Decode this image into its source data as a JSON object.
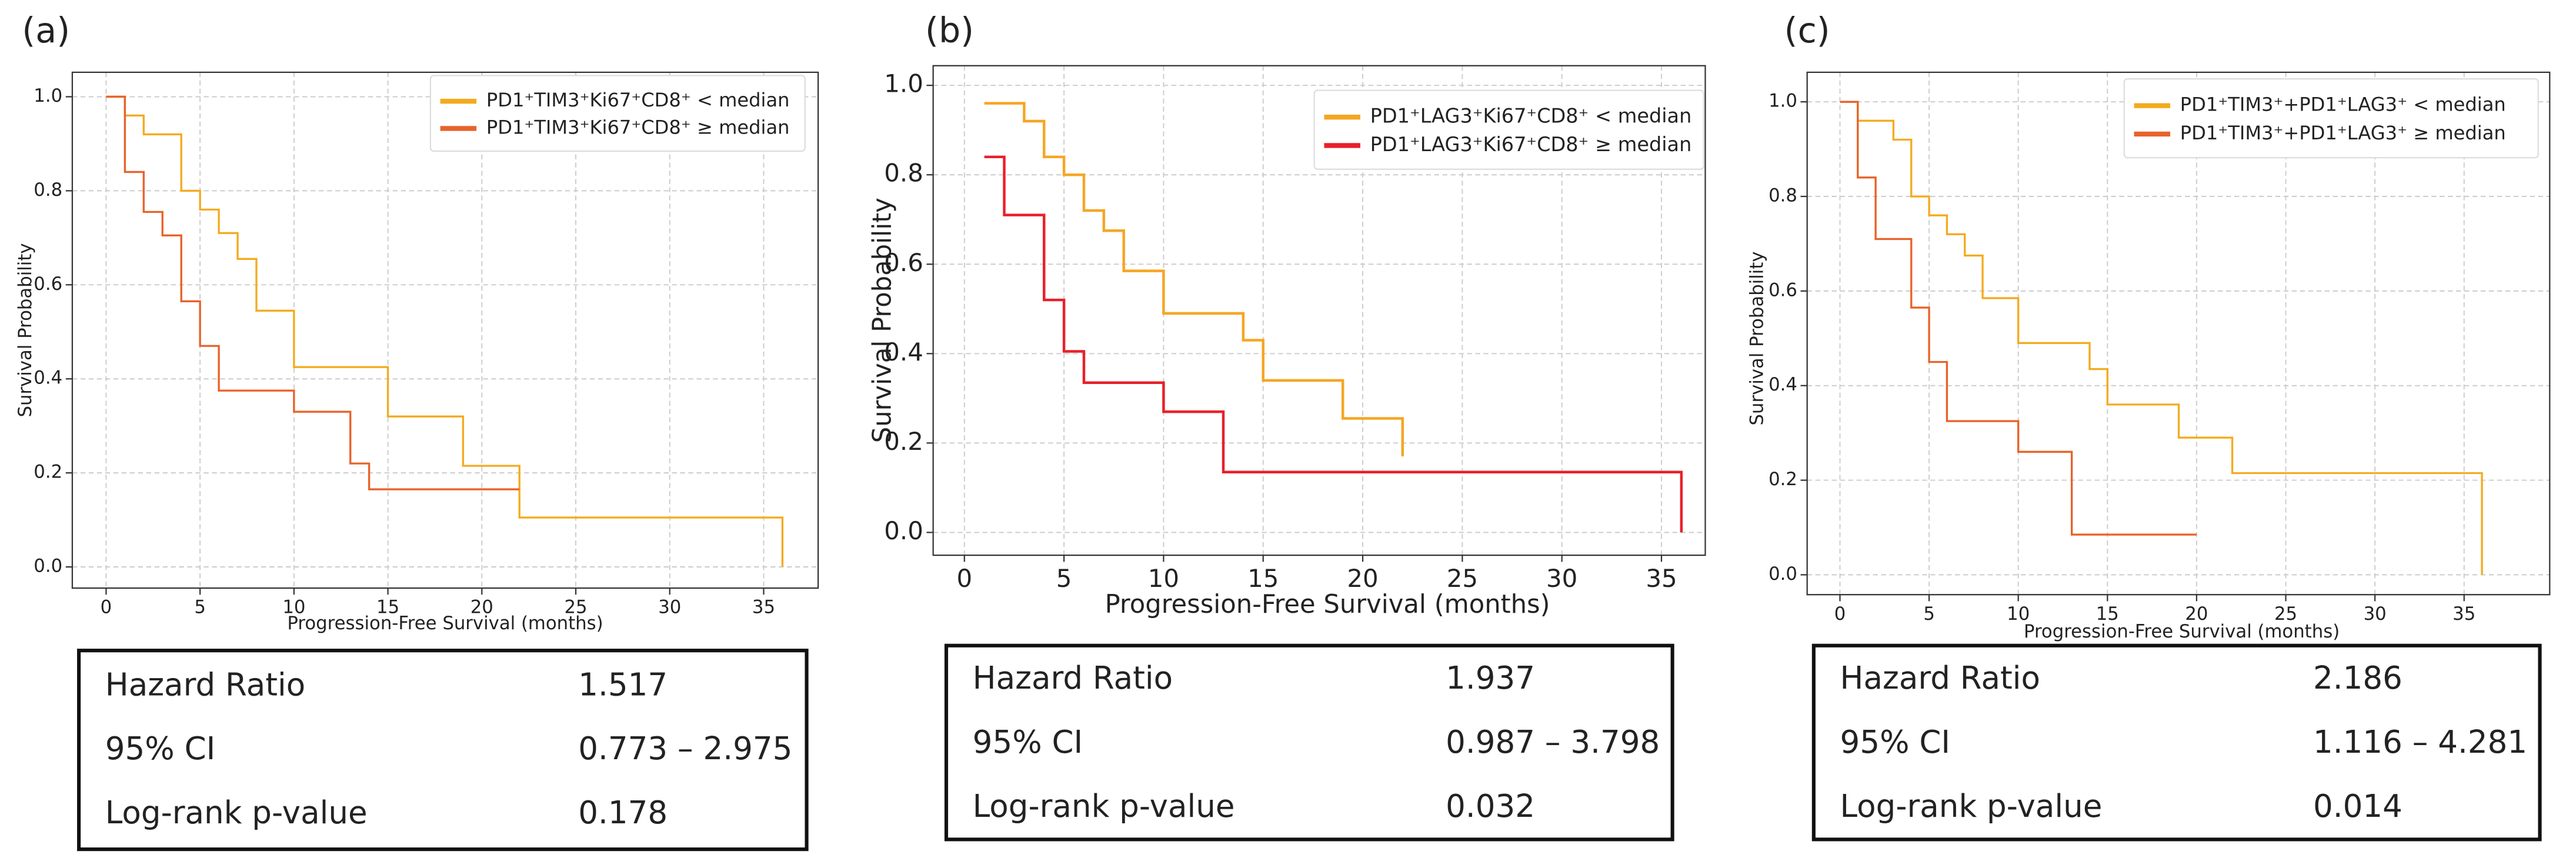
{
  "chart_data": [
    {
      "type": "line",
      "label": "(a)",
      "xlabel": "Progression-Free Survival (months)",
      "ylabel": "Survival Probability",
      "xlim": [
        -1.8,
        37.9
      ],
      "xticks": [
        0,
        5,
        10,
        15,
        20,
        25,
        30,
        35
      ],
      "ylim": [
        -0.045,
        1.052
      ],
      "yticks": [
        {
          "value": 0,
          "label": "0.0"
        },
        0.2,
        0.4,
        0.6,
        0.8,
        {
          "value": 1,
          "label": "1.0"
        }
      ],
      "grid": true,
      "legend": "upper right",
      "series": [
        {
          "name": "PD1⁺TIM3⁺Ki67⁺CD8⁺ < median",
          "color": "#f3ab1e",
          "x": [
            0,
            1,
            2,
            4,
            5,
            6,
            7,
            8,
            10,
            15,
            19,
            22,
            36
          ],
          "values": [
            1,
            0.96,
            0.92,
            0.8,
            0.76,
            0.71,
            0.655,
            0.545,
            0.425,
            0.32,
            0.215,
            0.105,
            0
          ]
        },
        {
          "name": "PD1⁺TIM3⁺Ki67⁺CD8⁺ ≥ median",
          "color": "#e8622a",
          "x": [
            0,
            1,
            2,
            3,
            4,
            5,
            6,
            10,
            13,
            14,
            22
          ],
          "values": [
            1,
            0.84,
            0.755,
            0.705,
            0.565,
            0.47,
            0.375,
            0.33,
            0.22,
            0.165,
            0.165
          ]
        }
      ],
      "table": {
        "rows": [
          [
            "Hazard Ratio",
            "1.517"
          ],
          [
            "95% CI",
            "0.773 – 2.975"
          ],
          [
            "Log-rank p-value",
            "0.178"
          ]
        ]
      }
    },
    {
      "type": "line",
      "label": "(b)",
      "xlabel": "Progression-Free Survival (months)",
      "ylabel": "Survival Probability",
      "xlim": [
        -1.57,
        37.2
      ],
      "xticks": [
        0,
        5,
        10,
        15,
        20,
        25,
        30,
        35
      ],
      "ylim": [
        -0.051,
        1.044
      ],
      "yticks": [
        {
          "value": 0,
          "label": "0.0"
        },
        0.2,
        0.4,
        0.6,
        0.8,
        {
          "value": 1,
          "label": "1.0"
        }
      ],
      "grid": true,
      "legend": "upper right",
      "series": [
        {
          "name": "PD1⁺LAG3⁺Ki67⁺CD8⁺ < median",
          "color": "#f5a623",
          "x": [
            1,
            3,
            4,
            5,
            6,
            7,
            8,
            10,
            14,
            15,
            19,
            22
          ],
          "values": [
            0.96,
            0.92,
            0.84,
            0.8,
            0.72,
            0.675,
            0.585,
            0.49,
            0.43,
            0.34,
            0.255,
            0.17
          ]
        },
        {
          "name": "PD1⁺LAG3⁺Ki67⁺CD8⁺ ≥ median",
          "color": "#e8202a",
          "x": [
            1,
            2,
            4,
            5,
            6,
            10,
            13,
            36
          ],
          "values": [
            0.84,
            0.71,
            0.52,
            0.405,
            0.335,
            0.27,
            0.135,
            0
          ]
        }
      ],
      "table": {
        "rows": [
          [
            "Hazard Ratio",
            "1.937"
          ],
          [
            "95% CI",
            "0.987 – 3.798"
          ],
          [
            "Log-rank p-value",
            "0.032"
          ]
        ]
      }
    },
    {
      "type": "line",
      "label": "(c)",
      "xlabel": "Progression-Free Survival (months)",
      "ylabel": "Survival Probability",
      "xlim": [
        -1.84,
        39.8
      ],
      "xticks": [
        0,
        5,
        10,
        15,
        20,
        25,
        30,
        35
      ],
      "ylim": [
        -0.042,
        1.0625
      ],
      "yticks": [
        {
          "value": 0,
          "label": "0.0"
        },
        0.2,
        0.4,
        0.6,
        0.8,
        {
          "value": 1,
          "label": "1.0"
        }
      ],
      "grid": true,
      "legend": "upper right",
      "series": [
        {
          "name": "PD1⁺TIM3⁺+PD1⁺LAG3⁺ < median",
          "color": "#f3ab1e",
          "x": [
            0,
            1,
            3,
            4,
            5,
            6,
            7,
            8,
            10,
            14,
            15,
            19,
            22,
            36
          ],
          "values": [
            1,
            0.96,
            0.92,
            0.8,
            0.76,
            0.72,
            0.675,
            0.585,
            0.49,
            0.435,
            0.36,
            0.29,
            0.215,
            0
          ]
        },
        {
          "name": "PD1⁺TIM3⁺+PD1⁺LAG3⁺ ≥ median",
          "color": "#e8622a",
          "x": [
            0,
            1,
            2,
            4,
            5,
            6,
            10,
            13,
            20
          ],
          "values": [
            1,
            0.84,
            0.71,
            0.565,
            0.45,
            0.325,
            0.26,
            0.085,
            0.085
          ]
        }
      ],
      "table": {
        "rows": [
          [
            "Hazard Ratio",
            "2.186"
          ],
          [
            "95% CI",
            "1.116 – 4.281"
          ],
          [
            "Log-rank p-value",
            "0.014"
          ]
        ]
      }
    }
  ]
}
